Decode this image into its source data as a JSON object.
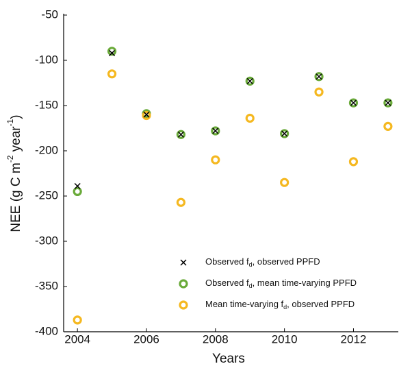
{
  "chart_data": {
    "type": "scatter",
    "ylabel": [
      "NEE (g C m",
      "-2",
      " year",
      "-1",
      ")"
    ],
    "xlabel": "Years",
    "x": [
      2004,
      2005,
      2006,
      2007,
      2008,
      2009,
      2010,
      2011,
      2012,
      2013
    ],
    "series": [
      {
        "name": [
          "Observed f",
          "d",
          ", observed PPFD"
        ],
        "color": "#000000",
        "marker": "x",
        "values": [
          -239,
          -92,
          -160,
          -182,
          -178,
          -123,
          -181,
          -118,
          -147,
          -147
        ]
      },
      {
        "name": [
          "Observed f",
          "d",
          ", mean time-varying PPFD"
        ],
        "color": "#6aaa3a",
        "marker": "o",
        "values": [
          -245,
          -90,
          -159,
          -182,
          -178,
          -123,
          -181,
          -118,
          -147,
          -147
        ]
      },
      {
        "name": [
          "Mean time-varying f",
          "d",
          ", observed PPFD"
        ],
        "color": "#f5b820",
        "marker": "o",
        "values": [
          -387,
          -115,
          -161,
          -257,
          -210,
          -164,
          -235,
          -135,
          -212,
          -173
        ]
      }
    ],
    "xlim": [
      2003.6,
      2013.3
    ],
    "xticks": [
      2004,
      2006,
      2008,
      2010,
      2012
    ],
    "ylim": [
      -400,
      -50
    ],
    "yticks": [
      -400,
      -350,
      -300,
      -250,
      -200,
      -150,
      -100,
      -50
    ]
  }
}
